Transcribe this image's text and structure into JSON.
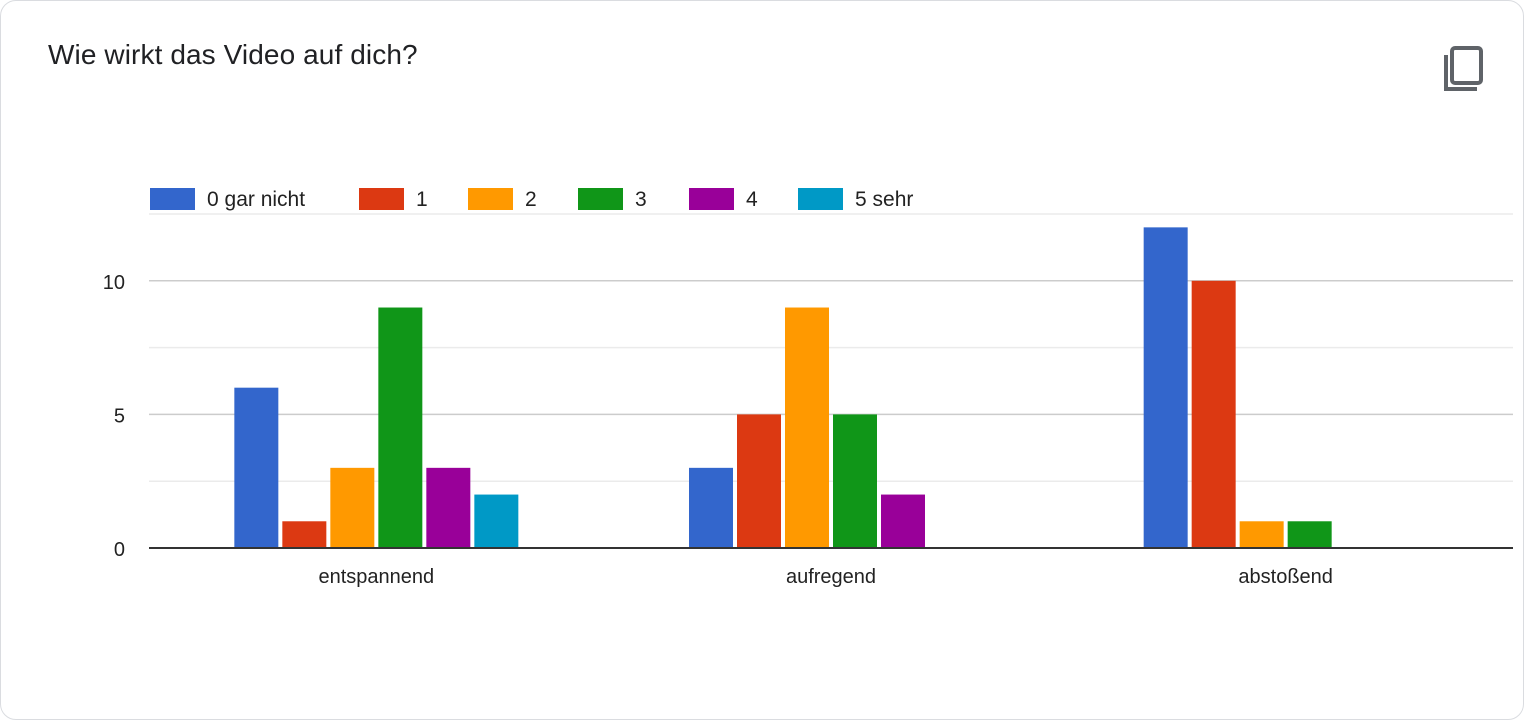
{
  "question": {
    "title": "Wie wirkt das Video auf dich?"
  },
  "icons": {
    "copy": "copy-icon"
  },
  "colors": {
    "grid": "#cccccc",
    "minor_grid": "#ebebeb",
    "axis": "#333333",
    "text": "#222222"
  },
  "chart_data": {
    "type": "bar",
    "title": "",
    "xlabel": "",
    "ylabel": "",
    "categories": [
      "entspannend",
      "aufregend",
      "abstoßend"
    ],
    "series": [
      {
        "name": "0 gar nicht",
        "color": "#3366cc",
        "values": [
          6,
          3,
          12
        ]
      },
      {
        "name": "1",
        "color": "#dc3912",
        "values": [
          1,
          5,
          10
        ]
      },
      {
        "name": "2",
        "color": "#ff9900",
        "values": [
          3,
          9,
          1
        ]
      },
      {
        "name": "3",
        "color": "#109618",
        "values": [
          9,
          5,
          1
        ]
      },
      {
        "name": "4",
        "color": "#990099",
        "values": [
          3,
          2,
          0
        ]
      },
      {
        "name": "5 sehr",
        "color": "#0099c6",
        "values": [
          2,
          0,
          0
        ]
      }
    ],
    "ylim": [
      0,
      12.5
    ],
    "yticks": [
      0,
      5,
      10
    ],
    "minor_grid_values": [
      2.5,
      7.5,
      12.5
    ],
    "legend_position": "top-left",
    "grid": true
  }
}
